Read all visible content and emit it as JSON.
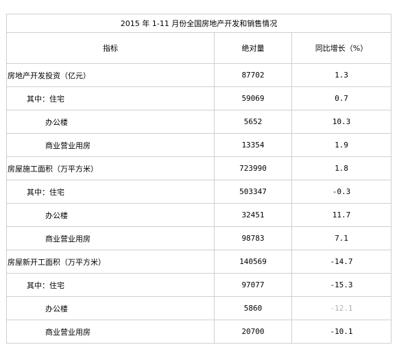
{
  "table": {
    "title": "2015 年 1-11 月份全国房地产开发和销售情况",
    "headers": {
      "indicator": "指标",
      "absolute": "绝对量",
      "growth": "同比增长（%）"
    },
    "rows": [
      {
        "name": "房地产开发投资（亿元）",
        "absolute": "87702",
        "growth": "1.3"
      },
      {
        "name": "其中：住宅",
        "absolute": "59069",
        "growth": "0.7"
      },
      {
        "name": "办公楼",
        "absolute": "5652",
        "growth": "10.3"
      },
      {
        "name": "商业营业用房",
        "absolute": "13354",
        "growth": "1.9"
      },
      {
        "name": "房屋施工面积（万平方米）",
        "absolute": "723990",
        "growth": "1.8"
      },
      {
        "name": "其中：住宅",
        "absolute": "503347",
        "growth": "-0.3"
      },
      {
        "name": "办公楼",
        "absolute": "32451",
        "growth": "11.7"
      },
      {
        "name": "商业营业用房",
        "absolute": "98783",
        "growth": "7.1"
      },
      {
        "name": "房屋新开工面积（万平方米）",
        "absolute": "140569",
        "growth": "-14.7"
      },
      {
        "name": "其中：住宅",
        "absolute": "97077",
        "growth": "-15.3"
      },
      {
        "name": "办公楼",
        "absolute": "5860",
        "growth": "-12.1"
      },
      {
        "name": "商业营业用房",
        "absolute": "20700",
        "growth": "-10.1"
      }
    ]
  }
}
